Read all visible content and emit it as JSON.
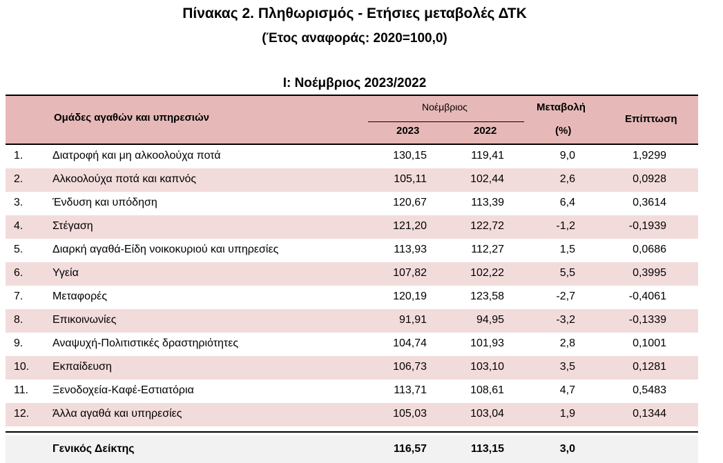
{
  "title": "Πίνακας 2. Πληθωρισμός - Ετήσιες μεταβολές ΔΤΚ",
  "subtitle": "(Έτος αναφοράς: 2020=100,0)",
  "section": "Ι: Νοέμβριος 2023/2022",
  "header": {
    "groups": "Ομάδες αγαθών και υπηρεσιών",
    "month": "Νοέμβριος",
    "year1": "2023",
    "year2": "2022",
    "change": "Μεταβολή",
    "change_unit": "(%)",
    "weight": "Επίπτωση"
  },
  "rows": [
    {
      "num": "1.",
      "name": "Διατροφή και μη αλκοολούχα ποτά",
      "y2023": "130,15",
      "y2022": "119,41",
      "change": "9,0",
      "weight": "1,9299"
    },
    {
      "num": "2.",
      "name": "Αλκοολούχα ποτά και καπνός",
      "y2023": "105,11",
      "y2022": "102,44",
      "change": "2,6",
      "weight": "0,0928"
    },
    {
      "num": "3.",
      "name": "Ένδυση και υπόδηση",
      "y2023": "120,67",
      "y2022": "113,39",
      "change": "6,4",
      "weight": "0,3614"
    },
    {
      "num": "4.",
      "name": "Στέγαση",
      "y2023": "121,20",
      "y2022": "122,72",
      "change": "-1,2",
      "weight": "-0,1939"
    },
    {
      "num": "5.",
      "name": "Διαρκή αγαθά-Είδη νοικοκυριού και υπηρεσίες",
      "y2023": "113,93",
      "y2022": "112,27",
      "change": "1,5",
      "weight": "0,0686"
    },
    {
      "num": "6.",
      "name": "Υγεία",
      "y2023": "107,82",
      "y2022": "102,22",
      "change": "5,5",
      "weight": "0,3995"
    },
    {
      "num": "7.",
      "name": "Μεταφορές",
      "y2023": "120,19",
      "y2022": "123,58",
      "change": "-2,7",
      "weight": "-0,4061"
    },
    {
      "num": "8.",
      "name": "Επικοινωνίες",
      "y2023": "91,91",
      "y2022": "94,95",
      "change": "-3,2",
      "weight": "-0,1339"
    },
    {
      "num": "9.",
      "name": "Αναψυχή-Πολιτιστικές δραστηριότητες",
      "y2023": "104,74",
      "y2022": "101,93",
      "change": "2,8",
      "weight": "0,1001"
    },
    {
      "num": "10.",
      "name": "Εκπαίδευση",
      "y2023": "106,73",
      "y2022": "103,10",
      "change": "3,5",
      "weight": "0,1281"
    },
    {
      "num": "11.",
      "name": "Ξενοδοχεία-Καφέ-Εστιατόρια",
      "y2023": "113,71",
      "y2022": "108,61",
      "change": "4,7",
      "weight": "0,5483"
    },
    {
      "num": "12.",
      "name": "Άλλα αγαθά και υπηρεσίες",
      "y2023": "105,03",
      "y2022": "103,04",
      "change": "1,9",
      "weight": "0,1344"
    }
  ],
  "total": {
    "name": "Γενικός Δείκτης",
    "y2023": "116,57",
    "y2022": "113,15",
    "change": "3,0"
  },
  "colors": {
    "header_bg": "#e6b9b8",
    "alt_row_bg": "#f2dcdb",
    "total_bg": "#f2f2f2"
  }
}
